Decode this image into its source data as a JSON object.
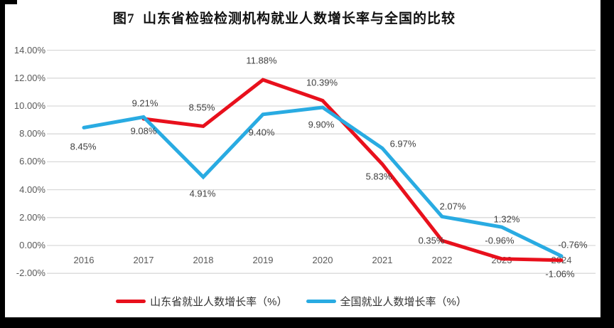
{
  "figure": {
    "title": "图7  山东省检验检测机构就业人数增长率与全国的比较",
    "background": "#ffffff",
    "border_color": "#000000"
  },
  "colors": {
    "shandong_line": "#e8101c",
    "national_line": "#29abe2",
    "gridline": "#d9d9d9",
    "axis_text": "#595959",
    "label_text": "#404040"
  },
  "chart_data": {
    "type": "line",
    "title": "图7  山东省检验检测机构就业人数增长率与全国的比较",
    "categories": [
      "2016",
      "2017",
      "2018",
      "2019",
      "2020",
      "2021",
      "2022",
      "2023",
      "2024"
    ],
    "series": [
      {
        "name": "山东省就业人数增长率（%）",
        "color": "#e8101c",
        "values": [
          null,
          9.08,
          8.55,
          11.88,
          10.39,
          5.83,
          0.35,
          -0.96,
          -1.06
        ],
        "labels": [
          "",
          "9.08%",
          "8.55%",
          "11.88%",
          "10.39%",
          "5.83%",
          "0.35%",
          "-0.96%",
          "-1.06%"
        ]
      },
      {
        "name": "全国就业人数增长率（%）",
        "color": "#29abe2",
        "values": [
          8.45,
          9.21,
          4.91,
          9.4,
          9.9,
          6.97,
          2.07,
          1.32,
          -0.76
        ],
        "labels": [
          "8.45%",
          "9.21%",
          "4.91%",
          "9.40%",
          "9.90%",
          "6.97%",
          "2.07%",
          "1.32%",
          "-0.76%"
        ]
      }
    ],
    "y_axis": {
      "tick_labels": [
        "14.00%",
        "12.00%",
        "10.00%",
        "8.00%",
        "6.00%",
        "4.00%",
        "2.00%",
        "0.00%",
        "-2.00%"
      ],
      "tick_values": [
        14,
        12,
        10,
        8,
        6,
        4,
        2,
        0,
        -2
      ],
      "min": -2,
      "max": 14,
      "step": 2
    },
    "grid": true,
    "legend_position": "bottom"
  }
}
